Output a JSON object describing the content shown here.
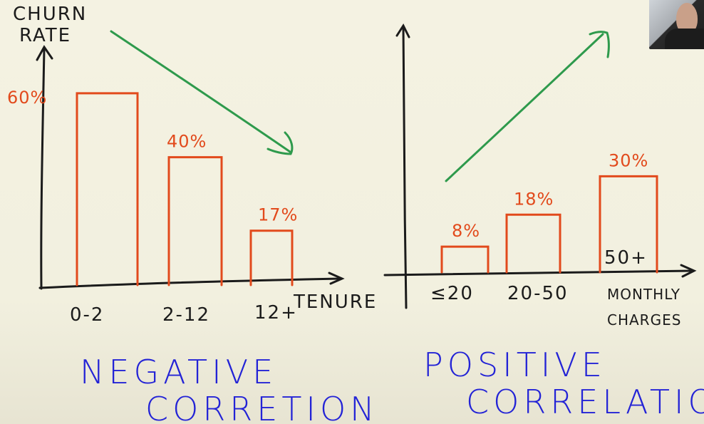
{
  "chart_data": [
    {
      "type": "bar",
      "categories": [
        "0-2",
        "2-12",
        "12+"
      ],
      "values": [
        60,
        40,
        17
      ],
      "data_labels": [
        "60%",
        "40%",
        "17%"
      ],
      "xlabel": "TENURE",
      "ylabel": "CHURN RATE",
      "ylim": [
        0,
        70
      ],
      "trend": "down",
      "caption": "NEGATIVE CORRETION"
    },
    {
      "type": "bar",
      "categories": [
        "≤20",
        "20-50",
        "50+"
      ],
      "values": [
        8,
        18,
        30
      ],
      "data_labels": [
        "8%",
        "18%",
        "30%"
      ],
      "xlabel": "MONTHLY CHARGES",
      "ylim": [
        0,
        70
      ],
      "trend": "up",
      "caption": "POSITIVE CORRELATION"
    }
  ],
  "colors": {
    "bars": "#e24a1c",
    "trend_arrow": "#2e9a4c",
    "axes": "#1b1b1b",
    "captions": "#2323d6",
    "background": "#f4f2e2"
  },
  "webcam": {
    "icon": "presenter-webcam"
  }
}
